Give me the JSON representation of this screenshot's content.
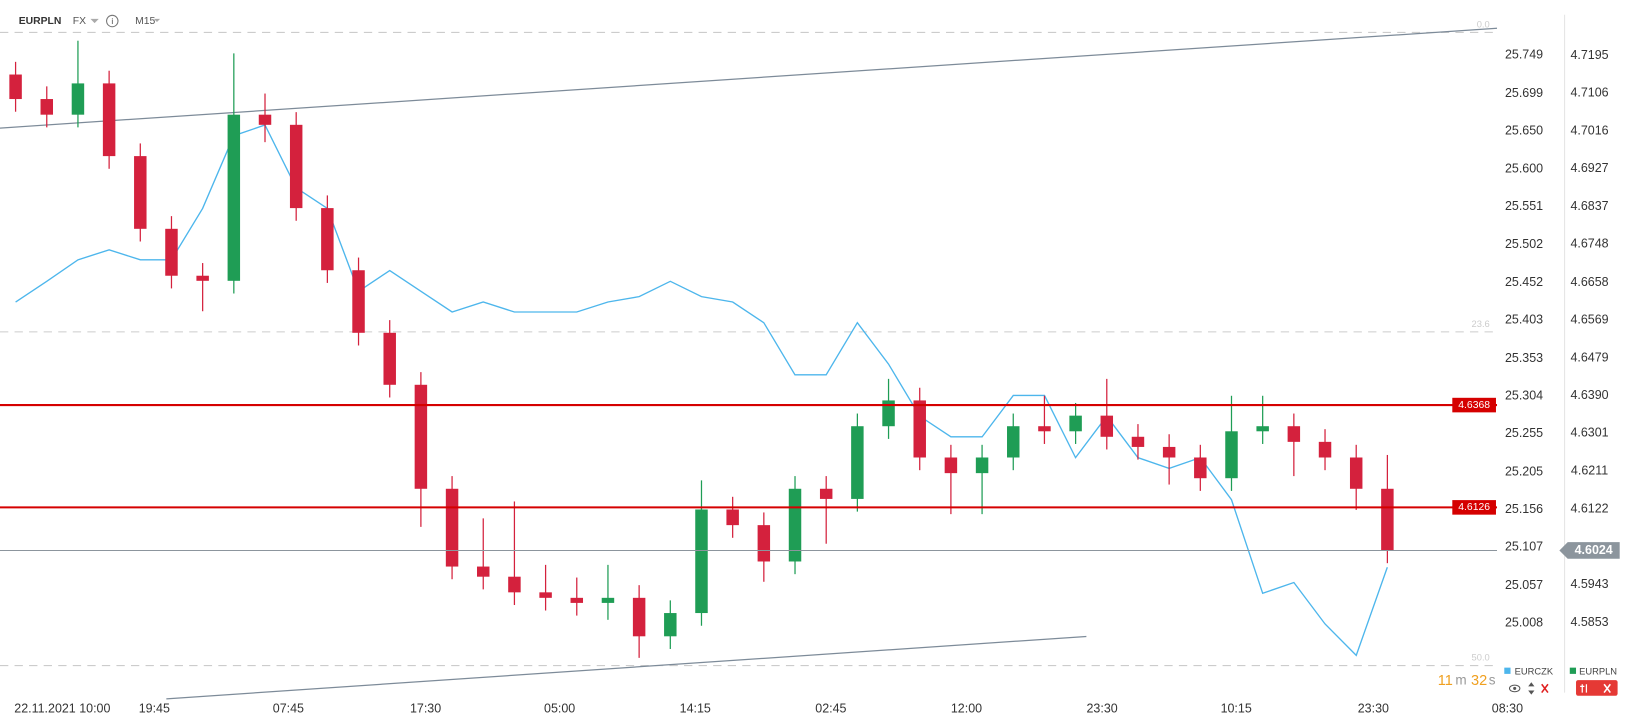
{
  "chart_data": {
    "type": "candlestick",
    "symbol": "EURPLN",
    "market": "FX",
    "interval": "M15",
    "x": [
      1,
      3,
      5,
      7,
      9,
      11,
      13,
      15,
      17,
      19,
      21,
      23,
      25,
      27,
      29,
      31,
      33,
      35,
      37,
      39,
      41,
      43,
      45,
      47,
      49,
      51,
      53,
      55,
      57,
      59,
      61,
      63,
      65,
      67,
      69,
      71,
      73,
      75,
      77,
      79,
      81,
      83,
      85,
      87,
      89
    ],
    "xlim": [
      0,
      97.5
    ],
    "xticks": [
      {
        "value": 4,
        "label": "22.11.2021 10:00"
      },
      {
        "value": 9.9,
        "label": "19:45"
      },
      {
        "value": 18.5,
        "label": "07:45"
      },
      {
        "value": 27.3,
        "label": "17:30"
      },
      {
        "value": 35.9,
        "label": "05:00"
      },
      {
        "value": 44.6,
        "label": "14:15"
      },
      {
        "value": 53.3,
        "label": "02:45"
      },
      {
        "value": 62,
        "label": "12:00"
      },
      {
        "value": 70.7,
        "label": "23:30"
      },
      {
        "value": 79.3,
        "label": "10:15"
      },
      {
        "value": 88.1,
        "label": "23:30"
      },
      {
        "value": 96.7,
        "label": "08:30"
      }
    ],
    "ylim": [
      24.912,
      25.78
    ],
    "yticks": [
      25.749,
      25.699,
      {
        "value": 25.65,
        "label": "25.650"
      },
      {
        "value": 25.6,
        "label": "25.600"
      },
      25.551,
      25.502,
      25.452,
      25.403,
      25.353,
      25.304,
      25.255,
      25.205,
      25.156,
      25.107,
      25.057,
      25.008
    ],
    "y2lim": [
      4.5678,
      4.7252
    ],
    "y2ticks": [
      4.7195,
      4.7106,
      4.7016,
      4.6927,
      4.6837,
      4.6748,
      4.6658,
      4.6569,
      4.6479,
      {
        "value": 4.639,
        "label": "4.6390"
      },
      4.6301,
      4.6211,
      4.6122,
      4.5943,
      4.5853
    ],
    "series": [
      {
        "name": "EURCZK",
        "type": "line",
        "color": "#4db6ec",
        "values": [
          25.427,
          25.454,
          25.482,
          25.495,
          25.482,
          25.482,
          25.549,
          25.644,
          25.658,
          25.576,
          25.549,
          25.441,
          25.468,
          25.441,
          25.414,
          25.427,
          25.414,
          25.414,
          25.414,
          25.427,
          25.434,
          25.454,
          25.434,
          25.427,
          25.4,
          25.332,
          25.332,
          25.4,
          25.346,
          25.278,
          25.251,
          25.251,
          25.305,
          25.305,
          25.224,
          25.278,
          25.224,
          25.21,
          25.224,
          25.169,
          25.047,
          25.061,
          25.007,
          24.966,
          25.081
        ]
      },
      {
        "name": "EURPLN",
        "type": "candlestick",
        "axis": "y2",
        "color": "#1f9d55",
        "up_color": "#1f9d55",
        "down_color": "#d4213d",
        "open": [
          4.715,
          4.7092,
          4.7055,
          4.7129,
          4.6957,
          4.6785,
          4.6674,
          4.6662,
          4.7055,
          4.7031,
          4.6834,
          4.6687,
          4.6539,
          4.6416,
          4.617,
          4.5986,
          4.5962,
          4.5925,
          4.5912,
          4.59,
          4.5912,
          4.5821,
          4.5876,
          4.6121,
          4.6084,
          4.5998,
          4.617,
          4.6146,
          4.6318,
          4.6379,
          4.6244,
          4.6207,
          4.6244,
          4.6318,
          4.6306,
          4.6343,
          4.6293,
          4.6269,
          4.6244,
          4.6195,
          4.6306,
          4.6318,
          4.6281,
          4.6244,
          4.617
        ],
        "high": [
          4.718,
          4.7122,
          4.723,
          4.7159,
          4.6987,
          4.6815,
          4.6704,
          4.72,
          4.7105,
          4.7061,
          4.6864,
          4.6717,
          4.6569,
          4.6446,
          4.62,
          4.61,
          4.614,
          4.599,
          4.596,
          4.599,
          4.5942,
          4.5906,
          4.619,
          4.6151,
          4.6114,
          4.62,
          4.62,
          4.6348,
          4.643,
          4.6409,
          4.6274,
          4.6274,
          4.6348,
          4.639,
          4.6373,
          4.643,
          4.6323,
          4.6299,
          4.6274,
          4.639,
          4.639,
          4.6348,
          4.6311,
          4.6274,
          4.625
        ],
        "low": [
          4.7062,
          4.7025,
          4.7025,
          4.6927,
          4.6755,
          4.6644,
          4.659,
          4.6632,
          4.699,
          4.6804,
          4.6657,
          4.6509,
          4.6386,
          4.608,
          4.5956,
          4.5932,
          4.5895,
          4.5882,
          4.587,
          4.586,
          4.577,
          4.5791,
          4.5846,
          4.6054,
          4.595,
          4.5968,
          4.604,
          4.6116,
          4.6288,
          4.6214,
          4.611,
          4.611,
          4.6214,
          4.6276,
          4.6276,
          4.6263,
          4.6239,
          4.618,
          4.6165,
          4.6165,
          4.6276,
          4.62,
          4.6214,
          4.612,
          4.5994
        ],
        "close": [
          4.7092,
          4.7055,
          4.7129,
          4.6957,
          4.6785,
          4.6674,
          4.6662,
          4.7055,
          4.7031,
          4.6834,
          4.6687,
          4.6539,
          4.6416,
          4.617,
          4.5986,
          4.5962,
          4.5925,
          4.5912,
          4.59,
          4.5912,
          4.5821,
          4.5876,
          4.6121,
          4.6084,
          4.5998,
          4.617,
          4.6146,
          4.6318,
          4.6379,
          4.6244,
          4.6207,
          4.6244,
          4.6318,
          4.6306,
          4.6343,
          4.6293,
          4.6269,
          4.6244,
          4.6195,
          4.6306,
          4.6318,
          4.6281,
          4.6244,
          4.617,
          4.6024
        ]
      }
    ],
    "levels": [
      {
        "value": 4.6368,
        "color": "#d50000"
      },
      {
        "value": 4.6126,
        "color": "#d50000"
      }
    ],
    "current_price": {
      "value": 4.6024,
      "color": "#8c959d"
    },
    "fib_labels": [
      "0.0",
      "23.6",
      "50.0"
    ],
    "timer": {
      "minutes": 11,
      "minutes_unit": "m",
      "seconds": 32,
      "seconds_unit": "s"
    }
  }
}
